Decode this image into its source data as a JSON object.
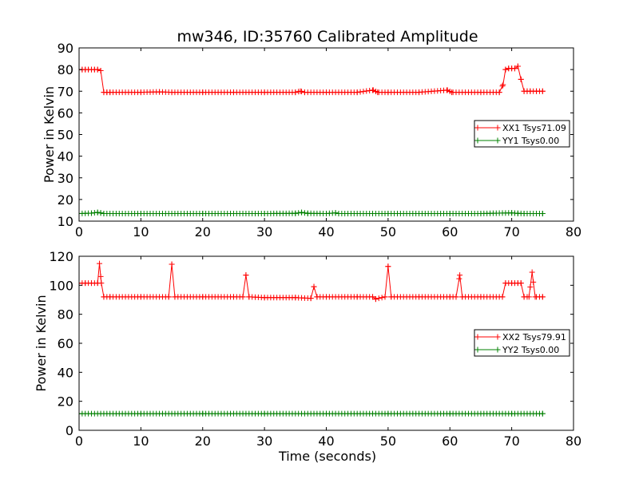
{
  "figure": {
    "title": "mw346, ID:35760 Calibrated Amplitude",
    "xlabel": "Time (seconds)"
  },
  "chart_data": [
    {
      "type": "line",
      "ylabel": "Power in Kelvin",
      "xlim": [
        0,
        80
      ],
      "ylim": [
        10,
        90
      ],
      "xticks": [
        0,
        10,
        20,
        30,
        40,
        50,
        60,
        70,
        80
      ],
      "yticks": [
        10,
        20,
        30,
        40,
        50,
        60,
        70,
        80,
        90
      ],
      "legend_position": "center-right",
      "series": [
        {
          "name": "XX1 Tsys71.09",
          "color": "#ff0000",
          "x": [
            0,
            0.5,
            1,
            1.5,
            2,
            2.5,
            3,
            3.5,
            4,
            4.5,
            5,
            10,
            13,
            15,
            20,
            25,
            30,
            35,
            35.8,
            36.5,
            40,
            45,
            47.6,
            48.3,
            50,
            55,
            59.6,
            60.3,
            65,
            68,
            68.6,
            69,
            69.5,
            70,
            70.5,
            71,
            71.5,
            72,
            72.5,
            73,
            74,
            75
          ],
          "y": [
            80,
            80,
            80,
            80,
            80,
            80,
            80,
            79.5,
            69.5,
            69.5,
            69.5,
            69.5,
            69.7,
            69.5,
            69.5,
            69.5,
            69.5,
            69.5,
            70,
            69.5,
            69.5,
            69.5,
            70.5,
            69.5,
            69.5,
            69.5,
            70.5,
            69.5,
            69.5,
            69.5,
            73,
            80,
            80.5,
            80.5,
            80.5,
            81.5,
            75.5,
            70,
            70,
            70,
            70,
            70
          ]
        },
        {
          "name": "YY1 Tsys0.00",
          "color": "#008000",
          "x": [
            0,
            2,
            3,
            3.5,
            4,
            10,
            20,
            30,
            35,
            36,
            37,
            40,
            41.5,
            42,
            50,
            60,
            65,
            70,
            71,
            72,
            75
          ],
          "y": [
            13.5,
            13.7,
            14,
            13.8,
            13.5,
            13.5,
            13.5,
            13.5,
            13.6,
            14,
            13.6,
            13.5,
            13.8,
            13.5,
            13.5,
            13.5,
            13.5,
            13.8,
            13.6,
            13.5,
            13.5
          ]
        }
      ]
    },
    {
      "type": "line",
      "ylabel": "Power in Kelvin",
      "xlabel": "Time (seconds)",
      "xlim": [
        0,
        80
      ],
      "ylim": [
        0,
        120
      ],
      "xticks": [
        0,
        10,
        20,
        30,
        40,
        50,
        60,
        70,
        80
      ],
      "yticks": [
        0,
        20,
        40,
        60,
        80,
        100,
        120
      ],
      "legend_position": "center-right",
      "series": [
        {
          "name": "XX2 Tsys79.91",
          "color": "#ff0000",
          "x": [
            0,
            1,
            2,
            3,
            3.3,
            3.6,
            4,
            5,
            10,
            14.5,
            15,
            15.5,
            20,
            25,
            26.5,
            27,
            27.5,
            30,
            35,
            37.5,
            38,
            38.5,
            40,
            45,
            47.5,
            48,
            49.5,
            50,
            50.5,
            55,
            60,
            61,
            61.6,
            62,
            65,
            68.5,
            69,
            70,
            70.5,
            71,
            71.5,
            72,
            72.8,
            73.3,
            73.8,
            75
          ],
          "y": [
            101.5,
            101.5,
            101.5,
            101.5,
            115,
            101.5,
            92,
            92,
            92,
            92,
            114.5,
            92,
            92,
            92,
            92,
            107,
            92,
            91.5,
            91.5,
            91,
            99,
            92,
            92,
            92,
            92,
            90.5,
            92,
            113,
            92,
            92,
            92,
            92,
            107,
            92,
            92,
            92,
            101.5,
            101.5,
            101.5,
            101.5,
            101.5,
            92,
            92,
            109,
            92,
            92
          ]
        },
        {
          "name": "YY2 Tsys0.00",
          "color": "#008000",
          "x": [
            0,
            10,
            20,
            30,
            40,
            50,
            60,
            70,
            75
          ],
          "y": [
            11.5,
            11.5,
            11.5,
            11.5,
            11.5,
            11.5,
            11.5,
            11.5,
            11.5
          ]
        }
      ]
    }
  ]
}
